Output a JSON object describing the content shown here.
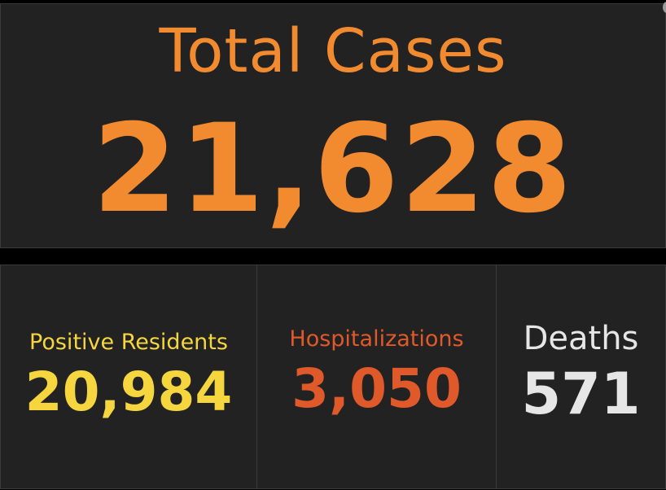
{
  "total": {
    "title": "Total Cases",
    "value": "21,628",
    "color": "#f28b30"
  },
  "stats": [
    {
      "label": "Positive Residents",
      "value": "20,984",
      "color": "#f5d63f"
    },
    {
      "label": "Hospitalizations",
      "value": "3,050",
      "color": "#e0592a"
    },
    {
      "label": "Deaths",
      "value": "571",
      "color": "#e6e6e6"
    }
  ],
  "colors": {
    "background": "#000000",
    "panel": "#222222",
    "panel_border": "#3a3a3a"
  }
}
